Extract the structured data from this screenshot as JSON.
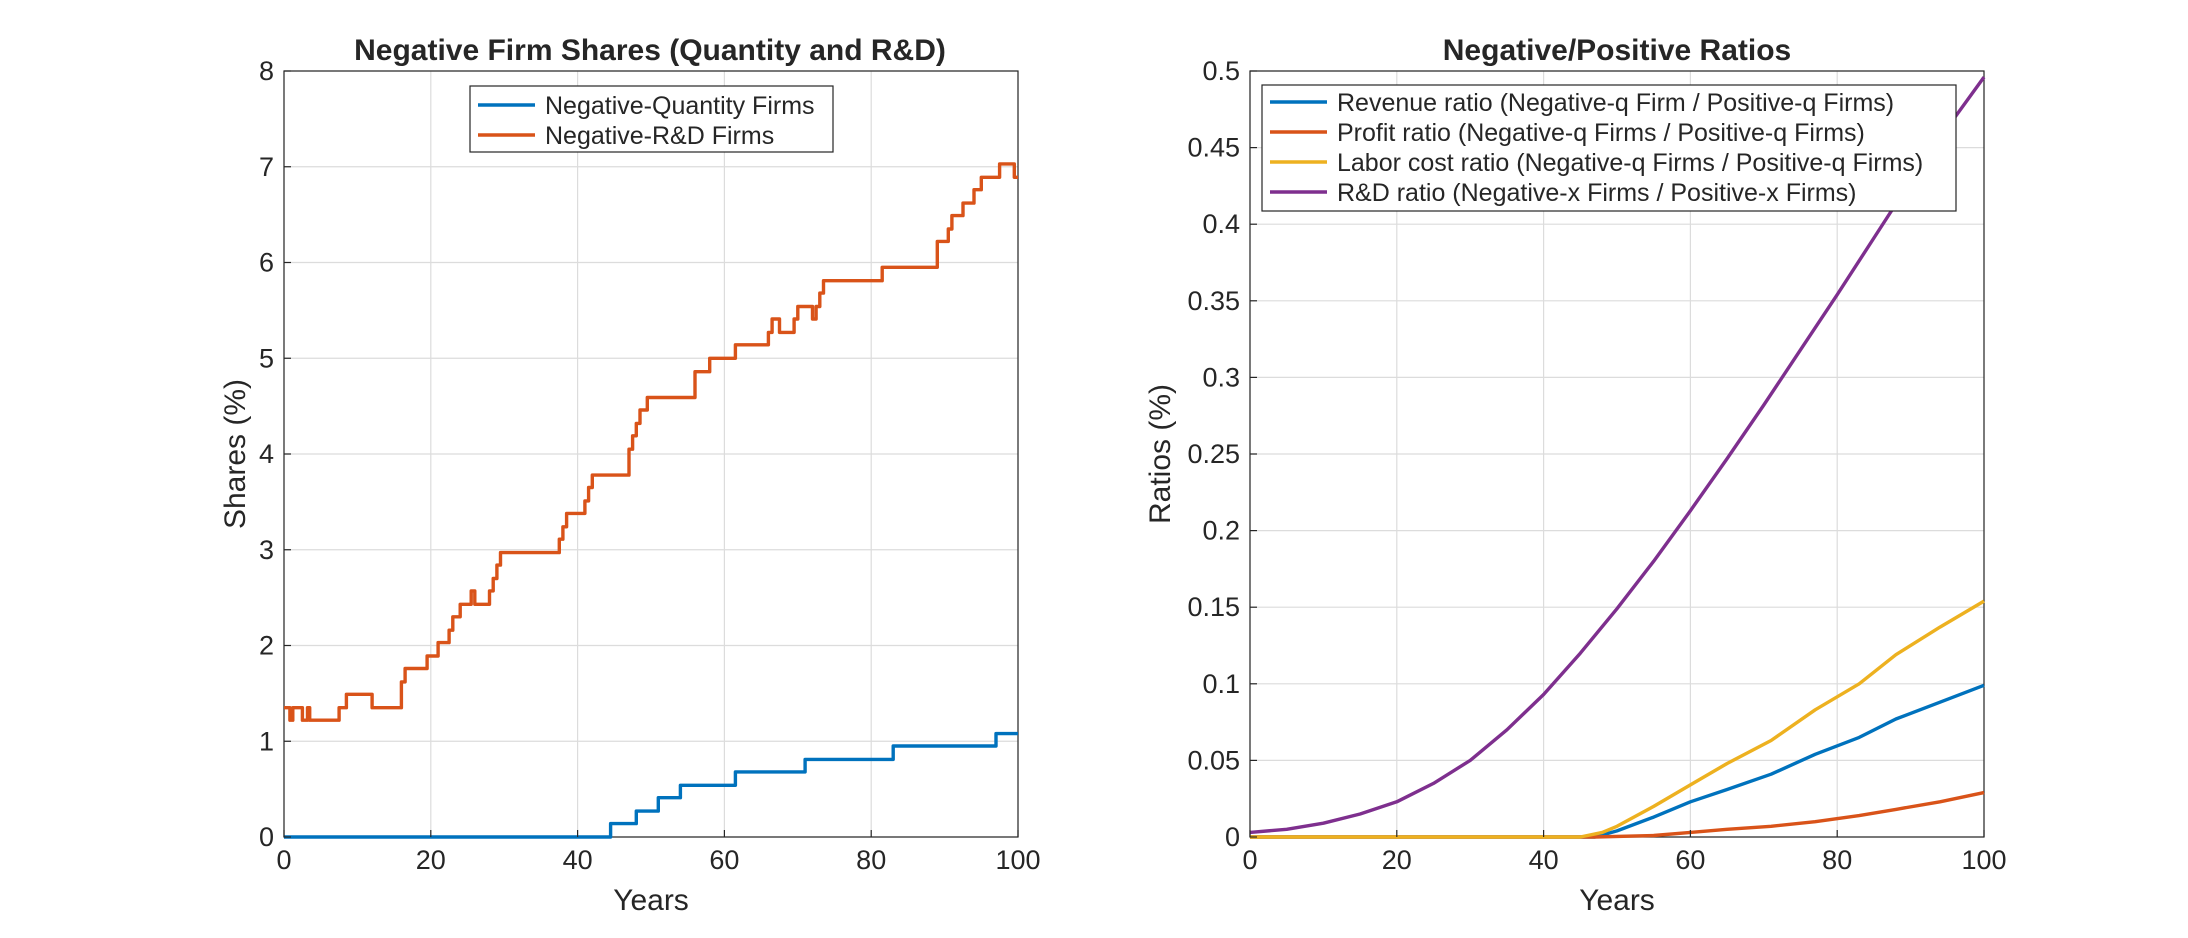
{
  "chart_data": [
    {
      "type": "line",
      "step": true,
      "title": "Negative Firm Shares (Quantity and R&D)",
      "xlabel": "Years",
      "ylabel": "Shares (%)",
      "xlim": [
        0,
        100
      ],
      "ylim": [
        0,
        8
      ],
      "xticks": [
        0,
        20,
        40,
        60,
        80,
        100
      ],
      "yticks": [
        0,
        1,
        2,
        3,
        4,
        5,
        6,
        7,
        8
      ],
      "grid": true,
      "legend": "top-center",
      "series": [
        {
          "name": "Negative-Quantity Firms",
          "color": "#0072BD",
          "points": [
            [
              0,
              0
            ],
            [
              44.5,
              0
            ],
            [
              44.5,
              0.14
            ],
            [
              48,
              0.14
            ],
            [
              48,
              0.27
            ],
            [
              51,
              0.27
            ],
            [
              51,
              0.41
            ],
            [
              54,
              0.41
            ],
            [
              54,
              0.54
            ],
            [
              61.5,
              0.54
            ],
            [
              61.5,
              0.68
            ],
            [
              71,
              0.68
            ],
            [
              71,
              0.81
            ],
            [
              83,
              0.81
            ],
            [
              83,
              0.95
            ],
            [
              97,
              0.95
            ],
            [
              97,
              1.08
            ],
            [
              100,
              1.08
            ]
          ]
        },
        {
          "name": "Negative-R&D Firms",
          "color": "#D95319",
          "points": [
            [
              0,
              1.35
            ],
            [
              0.8,
              1.35
            ],
            [
              0.8,
              1.22
            ],
            [
              1.2,
              1.22
            ],
            [
              1.2,
              1.35
            ],
            [
              2.5,
              1.35
            ],
            [
              2.5,
              1.22
            ],
            [
              3.2,
              1.22
            ],
            [
              3.2,
              1.35
            ],
            [
              3.5,
              1.35
            ],
            [
              3.5,
              1.22
            ],
            [
              7.5,
              1.22
            ],
            [
              7.5,
              1.35
            ],
            [
              8.5,
              1.35
            ],
            [
              8.5,
              1.49
            ],
            [
              12,
              1.49
            ],
            [
              12,
              1.35
            ],
            [
              16,
              1.35
            ],
            [
              16,
              1.62
            ],
            [
              16.5,
              1.62
            ],
            [
              16.5,
              1.76
            ],
            [
              19.5,
              1.76
            ],
            [
              19.5,
              1.89
            ],
            [
              21,
              1.89
            ],
            [
              21,
              2.03
            ],
            [
              22.5,
              2.03
            ],
            [
              22.5,
              2.16
            ],
            [
              23,
              2.16
            ],
            [
              23,
              2.3
            ],
            [
              24,
              2.3
            ],
            [
              24,
              2.43
            ],
            [
              25.5,
              2.43
            ],
            [
              25.5,
              2.57
            ],
            [
              26,
              2.57
            ],
            [
              26,
              2.43
            ],
            [
              28,
              2.43
            ],
            [
              28,
              2.57
            ],
            [
              28.5,
              2.57
            ],
            [
              28.5,
              2.7
            ],
            [
              29,
              2.7
            ],
            [
              29,
              2.84
            ],
            [
              29.5,
              2.84
            ],
            [
              29.5,
              2.97
            ],
            [
              37.5,
              2.97
            ],
            [
              37.5,
              3.11
            ],
            [
              38,
              3.11
            ],
            [
              38,
              3.24
            ],
            [
              38.5,
              3.24
            ],
            [
              38.5,
              3.38
            ],
            [
              41,
              3.38
            ],
            [
              41,
              3.51
            ],
            [
              41.5,
              3.51
            ],
            [
              41.5,
              3.65
            ],
            [
              42,
              3.65
            ],
            [
              42,
              3.78
            ],
            [
              47,
              3.78
            ],
            [
              47,
              4.05
            ],
            [
              47.5,
              4.05
            ],
            [
              47.5,
              4.19
            ],
            [
              48,
              4.19
            ],
            [
              48,
              4.32
            ],
            [
              48.5,
              4.32
            ],
            [
              48.5,
              4.46
            ],
            [
              49.5,
              4.46
            ],
            [
              49.5,
              4.59
            ],
            [
              56,
              4.59
            ],
            [
              56,
              4.86
            ],
            [
              58,
              4.86
            ],
            [
              58,
              5.0
            ],
            [
              61.5,
              5.0
            ],
            [
              61.5,
              5.14
            ],
            [
              66,
              5.14
            ],
            [
              66,
              5.27
            ],
            [
              66.5,
              5.27
            ],
            [
              66.5,
              5.41
            ],
            [
              67.5,
              5.41
            ],
            [
              67.5,
              5.27
            ],
            [
              69.5,
              5.27
            ],
            [
              69.5,
              5.41
            ],
            [
              70,
              5.41
            ],
            [
              70,
              5.54
            ],
            [
              72,
              5.54
            ],
            [
              72,
              5.41
            ],
            [
              72.5,
              5.41
            ],
            [
              72.5,
              5.54
            ],
            [
              73,
              5.54
            ],
            [
              73,
              5.68
            ],
            [
              73.5,
              5.68
            ],
            [
              73.5,
              5.81
            ],
            [
              81.5,
              5.81
            ],
            [
              81.5,
              5.95
            ],
            [
              89,
              5.95
            ],
            [
              89,
              6.22
            ],
            [
              90.5,
              6.22
            ],
            [
              90.5,
              6.35
            ],
            [
              91,
              6.35
            ],
            [
              91,
              6.49
            ],
            [
              92.5,
              6.49
            ],
            [
              92.5,
              6.62
            ],
            [
              94,
              6.62
            ],
            [
              94,
              6.76
            ],
            [
              95,
              6.76
            ],
            [
              95,
              6.89
            ],
            [
              97.5,
              6.89
            ],
            [
              97.5,
              7.03
            ],
            [
              99.5,
              7.03
            ],
            [
              99.5,
              6.89
            ],
            [
              100,
              6.89
            ]
          ]
        }
      ]
    },
    {
      "type": "line",
      "title": "Negative/Positive Ratios",
      "xlabel": "Years",
      "ylabel": "Ratios (%)",
      "xlim": [
        0,
        100
      ],
      "ylim": [
        0,
        0.5
      ],
      "xticks": [
        0,
        20,
        40,
        60,
        80,
        100
      ],
      "yticks": [
        0,
        0.05,
        0.1,
        0.15,
        0.2,
        0.25,
        0.3,
        0.35,
        0.4,
        0.45,
        0.5
      ],
      "ytick_labels": [
        "0",
        "0.05",
        "0.1",
        "0.15",
        "0.2",
        "0.25",
        "0.3",
        "0.35",
        "0.4",
        "0.45",
        "0.5"
      ],
      "grid": true,
      "legend": "top-left",
      "series": [
        {
          "name": "Revenue ratio (Negative-q Firm / Positive-q Firms)",
          "color": "#0072BD",
          "points": [
            [
              0,
              0
            ],
            [
              47,
              0
            ],
            [
              50,
              0.004
            ],
            [
              55,
              0.013
            ],
            [
              60,
              0.023
            ],
            [
              65,
              0.031
            ],
            [
              71,
              0.041
            ],
            [
              77,
              0.054
            ],
            [
              83,
              0.065
            ],
            [
              88,
              0.077
            ],
            [
              94,
              0.088
            ],
            [
              100,
              0.099
            ]
          ]
        },
        {
          "name": "Profit ratio (Negative-q Firms / Positive-q Firms)",
          "color": "#D95319",
          "points": [
            [
              0,
              0
            ],
            [
              47,
              0
            ],
            [
              55,
              0.001
            ],
            [
              60,
              0.003
            ],
            [
              65,
              0.005
            ],
            [
              71,
              0.007
            ],
            [
              77,
              0.01
            ],
            [
              83,
              0.014
            ],
            [
              88,
              0.018
            ],
            [
              94,
              0.023
            ],
            [
              100,
              0.029
            ]
          ]
        },
        {
          "name": "Labor cost ratio (Negative-q Firms / Positive-q Firms)",
          "color": "#EDB120",
          "points": [
            [
              0,
              0
            ],
            [
              45,
              0
            ],
            [
              48,
              0.003
            ],
            [
              50,
              0.007
            ],
            [
              55,
              0.02
            ],
            [
              60,
              0.034
            ],
            [
              65,
              0.048
            ],
            [
              71,
              0.063
            ],
            [
              77,
              0.083
            ],
            [
              83,
              0.1
            ],
            [
              88,
              0.119
            ],
            [
              94,
              0.137
            ],
            [
              100,
              0.154
            ]
          ]
        },
        {
          "name": "R&D ratio (Negative-x Firms / Positive-x Firms)",
          "color": "#7E2F8E",
          "points": [
            [
              0,
              0.003
            ],
            [
              5,
              0.005
            ],
            [
              10,
              0.009
            ],
            [
              15,
              0.015
            ],
            [
              20,
              0.023
            ],
            [
              25,
              0.035
            ],
            [
              30,
              0.05
            ],
            [
              35,
              0.07
            ],
            [
              40,
              0.093
            ],
            [
              45,
              0.12
            ],
            [
              50,
              0.149
            ],
            [
              55,
              0.18
            ],
            [
              60,
              0.213
            ],
            [
              65,
              0.247
            ],
            [
              70,
              0.282
            ],
            [
              75,
              0.318
            ],
            [
              80,
              0.354
            ],
            [
              85,
              0.391
            ],
            [
              90,
              0.428
            ],
            [
              95,
              0.463
            ],
            [
              100,
              0.496
            ]
          ]
        }
      ]
    }
  ]
}
